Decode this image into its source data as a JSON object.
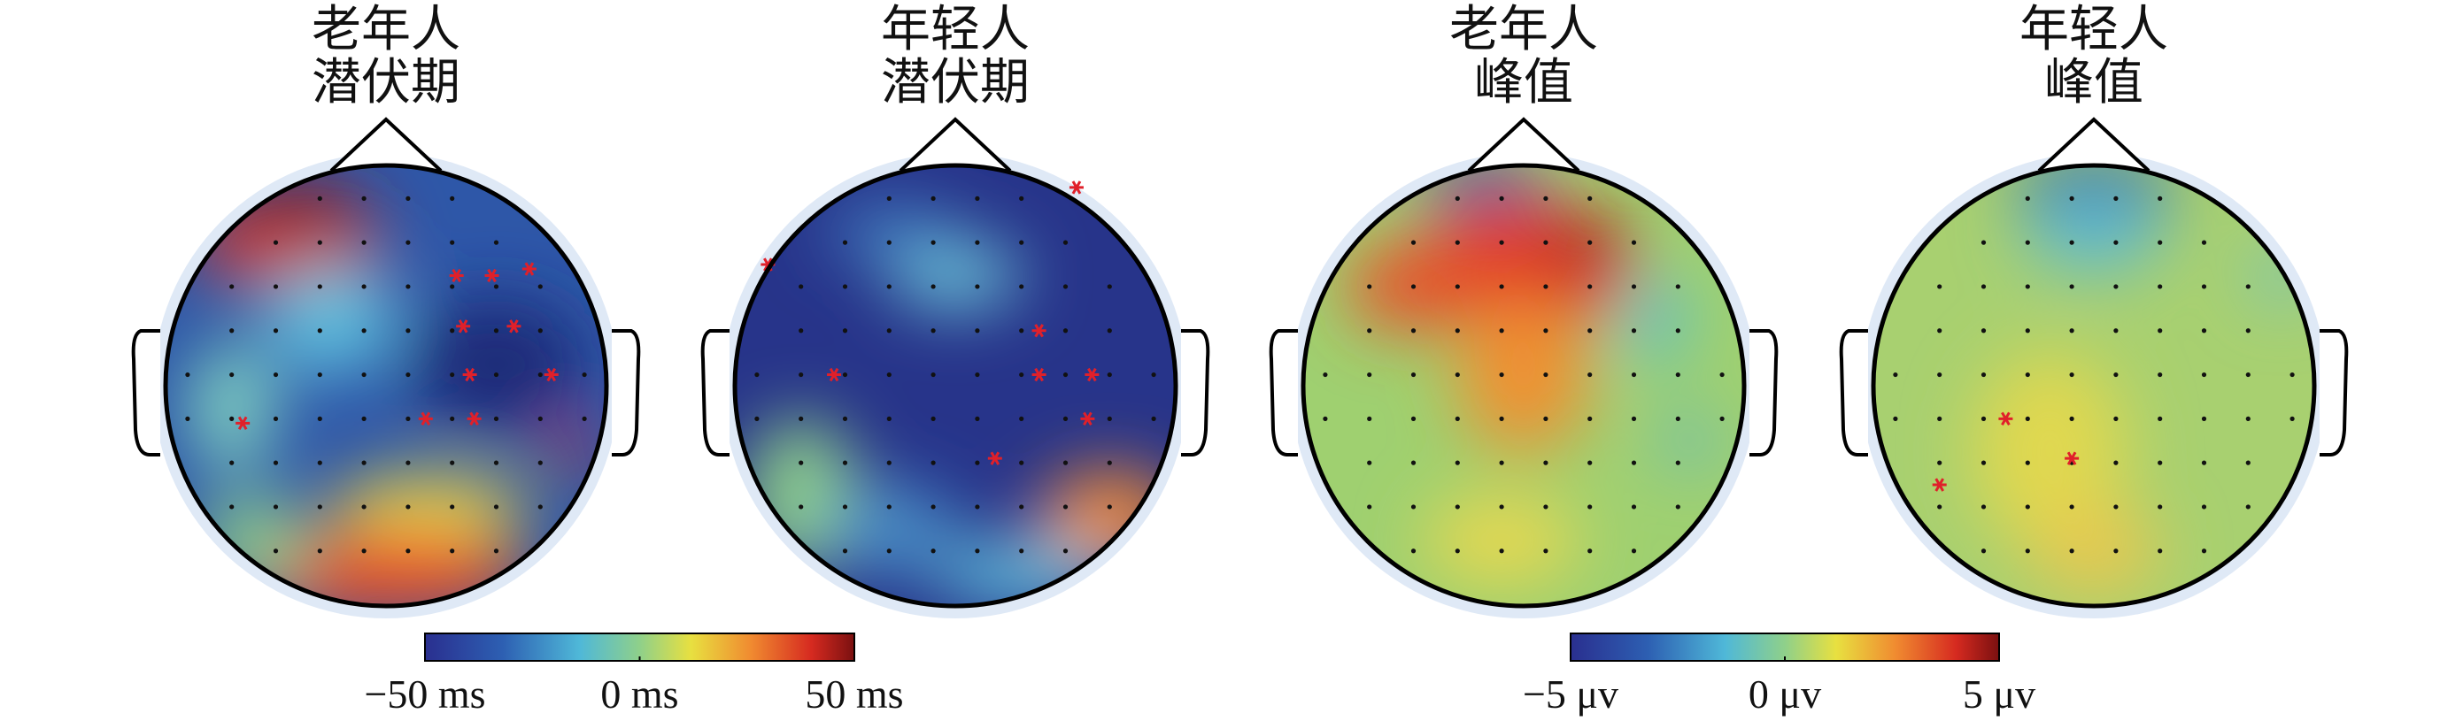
{
  "panels": [
    {
      "title": [
        "老年人",
        "潜伏期"
      ]
    },
    {
      "title": [
        "年轻人",
        "潜伏期"
      ]
    },
    {
      "title": [
        "老年人",
        "峰值"
      ]
    },
    {
      "title": [
        "年轻人",
        "峰值"
      ]
    }
  ],
  "colorbars": [
    {
      "lim": [
        -50,
        50
      ],
      "ticks": [
        {
          "value": -50,
          "label": "−50 ms"
        },
        {
          "value": 0,
          "label": "0 ms"
        },
        {
          "value": 50,
          "label": "50 ms"
        }
      ]
    },
    {
      "lim": [
        -5,
        5
      ],
      "ticks": [
        {
          "value": -5,
          "label": "−5 μv"
        },
        {
          "value": 0,
          "label": "0 μv"
        },
        {
          "value": 5,
          "label": "5 μv"
        }
      ]
    }
  ]
}
